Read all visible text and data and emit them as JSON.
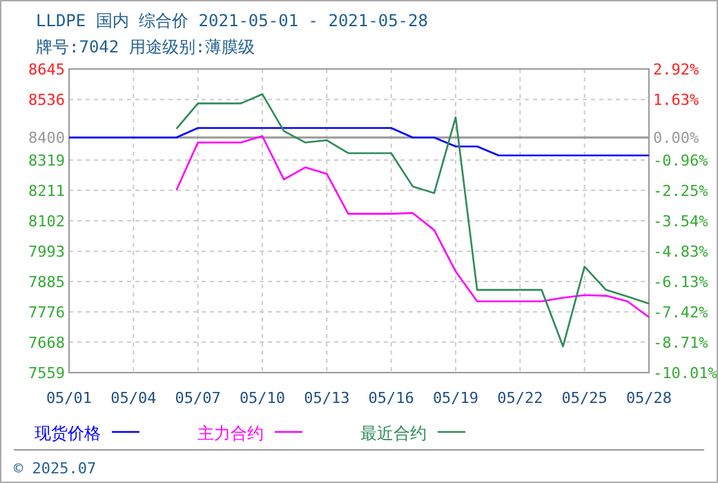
{
  "chart_data": {
    "type": "line",
    "title": "LLDPE 国内 综合价 2021-05-01 - 2021-05-28",
    "subtitle": "牌号:7042 用途级别:薄膜级",
    "x": [
      "2021-05-01",
      "2021-05-02",
      "2021-05-03",
      "2021-05-04",
      "2021-05-05",
      "2021-05-06",
      "2021-05-07",
      "2021-05-08",
      "2021-05-09",
      "2021-05-10",
      "2021-05-11",
      "2021-05-12",
      "2021-05-13",
      "2021-05-14",
      "2021-05-15",
      "2021-05-16",
      "2021-05-17",
      "2021-05-18",
      "2021-05-19",
      "2021-05-20",
      "2021-05-21",
      "2021-05-22",
      "2021-05-23",
      "2021-05-24",
      "2021-05-25",
      "2021-05-26",
      "2021-05-27",
      "2021-05-28"
    ],
    "series": [
      {
        "name": "现货价格",
        "color": "#0000ff",
        "values": [
          8400,
          8400,
          8400,
          8400,
          8400,
          8400,
          8434,
          8434,
          8434,
          8434,
          8434,
          8434,
          8434,
          8434,
          8434,
          8434,
          8400,
          8400,
          8368,
          8368,
          8336,
          8336,
          8336,
          8336,
          8336,
          8336,
          8336,
          8336
        ]
      },
      {
        "name": "主力合约",
        "color": "#ff00ff",
        "values": [
          null,
          null,
          null,
          null,
          null,
          8212,
          8382,
          8382,
          8382,
          8405,
          8250,
          8293,
          8270,
          8127,
          8127,
          8127,
          8130,
          8069,
          7921,
          7814,
          7814,
          7814,
          7814,
          7827,
          7836,
          7834,
          7814,
          7757
        ]
      },
      {
        "name": "最近合约",
        "color": "#2e8b57",
        "values": [
          null,
          null,
          null,
          null,
          null,
          8431,
          8522,
          8522,
          8522,
          8555,
          8423,
          8382,
          8390,
          8344,
          8344,
          8344,
          8225,
          8201,
          8472,
          7855,
          7855,
          7855,
          7855,
          7653,
          7938,
          7855,
          7831,
          7806
        ]
      }
    ],
    "xlim": [
      "2021-05-01",
      "2021-05-28"
    ],
    "xticks": [
      {
        "value": "2021-05-01",
        "label": "05/01"
      },
      {
        "value": "2021-05-04",
        "label": "05/04"
      },
      {
        "value": "2021-05-07",
        "label": "05/07"
      },
      {
        "value": "2021-05-10",
        "label": "05/10"
      },
      {
        "value": "2021-05-13",
        "label": "05/13"
      },
      {
        "value": "2021-05-16",
        "label": "05/16"
      },
      {
        "value": "2021-05-19",
        "label": "05/19"
      },
      {
        "value": "2021-05-22",
        "label": "05/22"
      },
      {
        "value": "2021-05-25",
        "label": "05/25"
      },
      {
        "value": "2021-05-28",
        "label": "05/28"
      }
    ],
    "ylim": [
      7559,
      8645
    ],
    "yticks": [
      8645,
      8536,
      8400,
      8319,
      8211,
      8102,
      7993,
      7885,
      7776,
      7668,
      7559
    ],
    "y2lim": [
      -10.01,
      2.92
    ],
    "y2ticks": [
      {
        "value": 2.92,
        "label": "2.92%"
      },
      {
        "value": 1.63,
        "label": "1.63%"
      },
      {
        "value": 0,
        "label": "0.00%"
      },
      {
        "value": -0.96,
        "label": "-0.96%"
      },
      {
        "value": -2.25,
        "label": "-2.25%"
      },
      {
        "value": -3.54,
        "label": "-3.54%"
      },
      {
        "value": -4.83,
        "label": "-4.83%"
      },
      {
        "value": -6.13,
        "label": "-6.13%"
      },
      {
        "value": -7.42,
        "label": "-7.42%"
      },
      {
        "value": -8.71,
        "label": "-8.71%"
      },
      {
        "value": -10.01,
        "label": "-10.01%"
      }
    ],
    "ref_lines": [
      {
        "axis": "y",
        "value": 8400,
        "color": "#999999"
      }
    ],
    "grid": true,
    "legend": "bottom",
    "line_style": "solid",
    "annotations": [
      "© 2025.07"
    ]
  }
}
